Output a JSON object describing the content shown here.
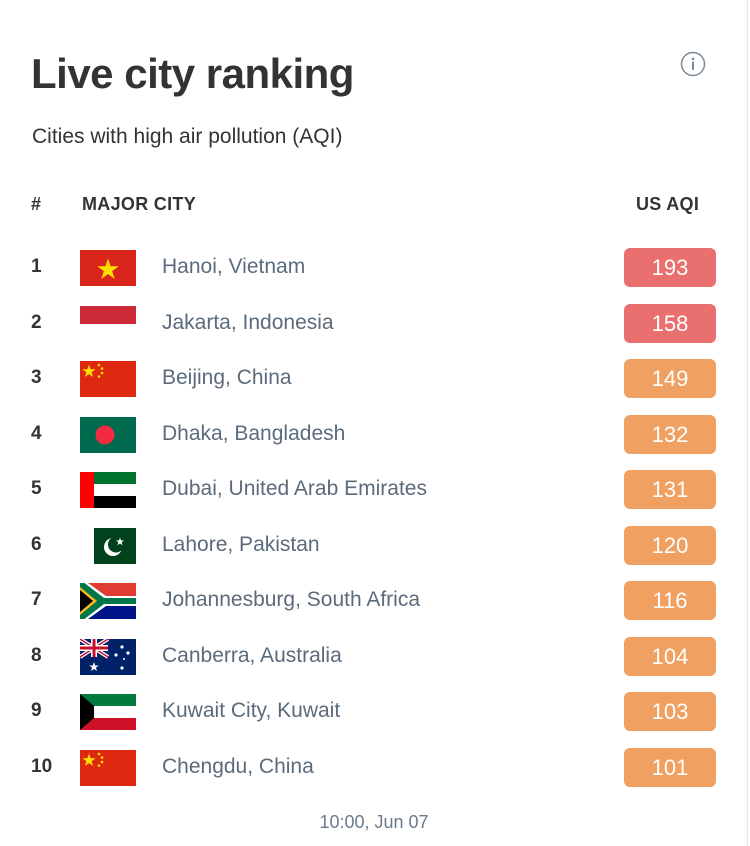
{
  "widget": {
    "title": "Live city ranking",
    "subtitle": "Cities with high air pollution (AQI)",
    "info_icon": "info-circle-icon"
  },
  "table": {
    "headers": {
      "rank": "#",
      "city": "MAJOR CITY",
      "aqi": "US AQI"
    },
    "rows": [
      {
        "rank": "1",
        "city": "Hanoi, Vietnam",
        "aqi": "193",
        "flag": "vietnam-flag-icon",
        "level": "unhealthy"
      },
      {
        "rank": "2",
        "city": "Jakarta, Indonesia",
        "aqi": "158",
        "flag": "indonesia-flag-icon",
        "level": "unhealthy"
      },
      {
        "rank": "3",
        "city": "Beijing, China",
        "aqi": "149",
        "flag": "china-flag-icon",
        "level": "sensitive"
      },
      {
        "rank": "4",
        "city": "Dhaka, Bangladesh",
        "aqi": "132",
        "flag": "bangladesh-flag-icon",
        "level": "sensitive"
      },
      {
        "rank": "5",
        "city": "Dubai, United Arab Emirates",
        "aqi": "131",
        "flag": "uae-flag-icon",
        "level": "sensitive"
      },
      {
        "rank": "6",
        "city": "Lahore, Pakistan",
        "aqi": "120",
        "flag": "pakistan-flag-icon",
        "level": "sensitive"
      },
      {
        "rank": "7",
        "city": "Johannesburg, South Africa",
        "aqi": "116",
        "flag": "south-africa-flag-icon",
        "level": "sensitive"
      },
      {
        "rank": "8",
        "city": "Canberra, Australia",
        "aqi": "104",
        "flag": "australia-flag-icon",
        "level": "sensitive"
      },
      {
        "rank": "9",
        "city": "Kuwait City, Kuwait",
        "aqi": "103",
        "flag": "kuwait-flag-icon",
        "level": "sensitive"
      },
      {
        "rank": "10",
        "city": "Chengdu, China",
        "aqi": "101",
        "flag": "china-flag-icon",
        "level": "sensitive"
      }
    ]
  },
  "footer": {
    "timestamp": "10:00, Jun 07"
  },
  "colors": {
    "unhealthy": "#ea6f6f",
    "unhealthy_for_sensitive": "#f0a060",
    "title_text": "#333333",
    "city_text": "#5b6b7b"
  }
}
